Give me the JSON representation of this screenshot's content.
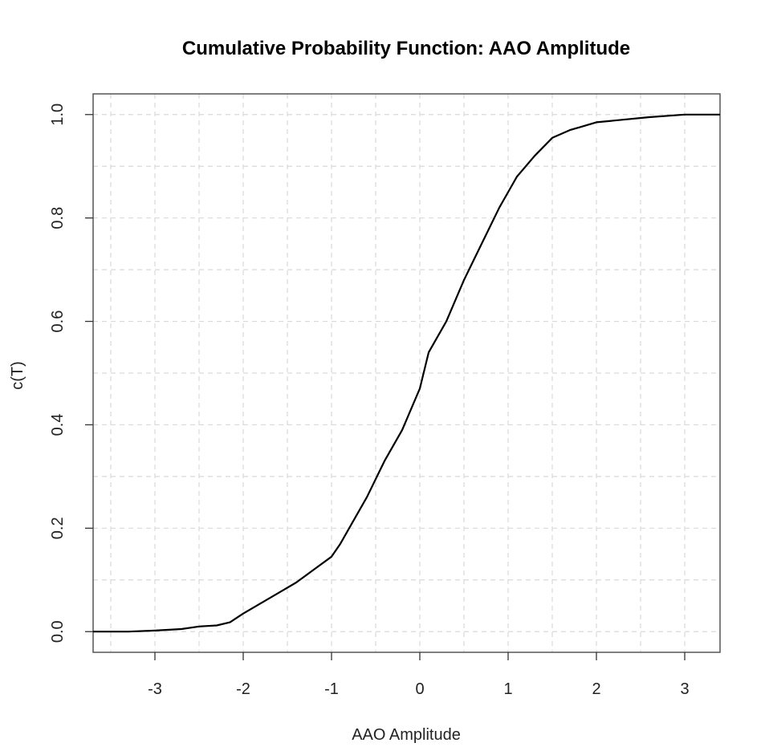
{
  "chart_data": {
    "type": "line",
    "title": "Cumulative Probability Function: AAO Amplitude",
    "xlabel": "AAO Amplitude",
    "ylabel": "c(T)",
    "xlim": [
      -3.7,
      3.4
    ],
    "ylim": [
      -0.04,
      1.04
    ],
    "x_ticks": [
      -3,
      -2,
      -1,
      0,
      1,
      2,
      3
    ],
    "x_tick_labels": [
      "-3",
      "-2",
      "-1",
      "0",
      "1",
      "2",
      "3"
    ],
    "y_ticks": [
      0.0,
      0.2,
      0.4,
      0.6,
      0.8,
      1.0
    ],
    "y_tick_labels": [
      "0.0",
      "0.2",
      "0.4",
      "0.6",
      "0.8",
      "1.0"
    ],
    "grid": true,
    "series": [
      {
        "x": [
          -3.7,
          -3.3,
          -3.0,
          -2.7,
          -2.5,
          -2.3,
          -2.15,
          -2.0,
          -1.8,
          -1.6,
          -1.4,
          -1.2,
          -1.0,
          -0.9,
          -0.8,
          -0.6,
          -0.4,
          -0.2,
          0.0,
          0.1,
          0.3,
          0.5,
          0.7,
          0.9,
          1.1,
          1.3,
          1.5,
          1.7,
          1.8,
          2.0,
          2.3,
          2.6,
          3.0,
          3.4
        ],
        "y": [
          0.0,
          0.0,
          0.002,
          0.005,
          0.01,
          0.012,
          0.018,
          0.035,
          0.055,
          0.075,
          0.095,
          0.12,
          0.145,
          0.17,
          0.2,
          0.26,
          0.33,
          0.39,
          0.47,
          0.54,
          0.6,
          0.68,
          0.75,
          0.82,
          0.88,
          0.92,
          0.955,
          0.97,
          0.975,
          0.985,
          0.99,
          0.995,
          1.0,
          1.0
        ]
      }
    ]
  }
}
